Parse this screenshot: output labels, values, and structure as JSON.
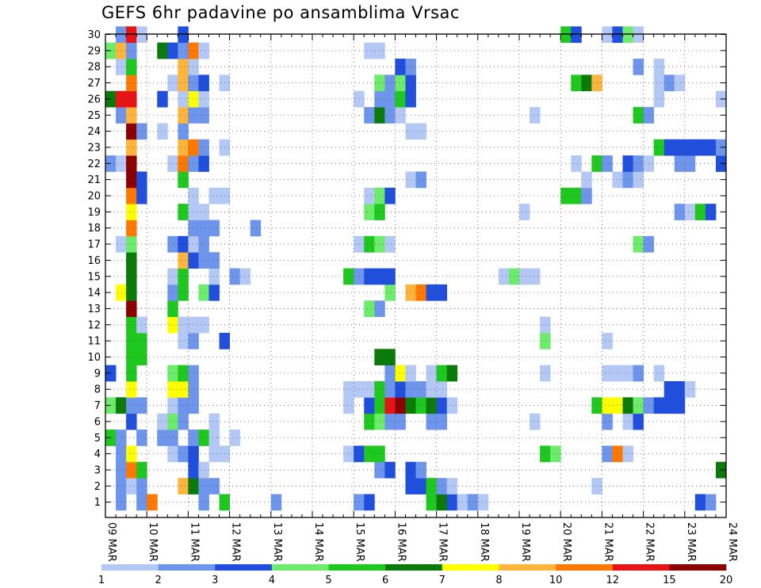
{
  "chart_data": {
    "type": "heatmap",
    "title": "GEFS 6hr padavine po ansamblima Vrsac",
    "xlabel": "",
    "ylabel": "",
    "y_categories": [
      "1",
      "2",
      "3",
      "4",
      "5",
      "6",
      "7",
      "8",
      "9",
      "10",
      "11",
      "12",
      "13",
      "14",
      "15",
      "16",
      "17",
      "18",
      "19",
      "20",
      "21",
      "22",
      "23",
      "24",
      "25",
      "26",
      "27",
      "28",
      "29",
      "30"
    ],
    "x_tick_labels": [
      "09 MAR",
      "10 MAR",
      "11 MAR",
      "12 MAR",
      "13 MAR",
      "14 MAR",
      "15 MAR",
      "16 MAR",
      "17 MAR",
      "18 MAR",
      "19 MAR",
      "20 MAR",
      "21 MAR",
      "22 MAR",
      "23 MAR",
      "24 MAR"
    ],
    "x_start": "2009-03-09 00Z",
    "time_step_hours": 6,
    "n_steps": 60,
    "grid": true,
    "colorbar": {
      "levels": [
        1,
        2,
        3,
        4,
        5,
        6,
        7,
        8,
        10,
        12,
        15,
        20
      ],
      "colors": [
        "#b4c8f5",
        "#6e95ec",
        "#1f4fdc",
        "#6cec6a",
        "#1ec81e",
        "#0a7a0a",
        "#ffff00",
        "#ffb43c",
        "#ff7800",
        "#e61414",
        "#8c0000"
      ]
    },
    "cells": [
      [
        1,
        1,
        2
      ],
      [
        1,
        3,
        2
      ],
      [
        1,
        4,
        9
      ],
      [
        1,
        9,
        2
      ],
      [
        1,
        11,
        5
      ],
      [
        1,
        16,
        2
      ],
      [
        1,
        24,
        2
      ],
      [
        1,
        25,
        3
      ],
      [
        1,
        31,
        5
      ],
      [
        1,
        32,
        6
      ],
      [
        1,
        33,
        3
      ],
      [
        1,
        34,
        1
      ],
      [
        1,
        35,
        2
      ],
      [
        1,
        36,
        1
      ],
      [
        1,
        57,
        3
      ],
      [
        1,
        58,
        2
      ],
      [
        2,
        1,
        2
      ],
      [
        2,
        2,
        1
      ],
      [
        2,
        3,
        2
      ],
      [
        2,
        7,
        8
      ],
      [
        2,
        8,
        6
      ],
      [
        2,
        9,
        2
      ],
      [
        2,
        10,
        2
      ],
      [
        2,
        29,
        3
      ],
      [
        2,
        30,
        3
      ],
      [
        2,
        31,
        5
      ],
      [
        2,
        32,
        2
      ],
      [
        2,
        33,
        1
      ],
      [
        2,
        47,
        1
      ],
      [
        3,
        1,
        2
      ],
      [
        3,
        2,
        9
      ],
      [
        3,
        3,
        5
      ],
      [
        3,
        8,
        3
      ],
      [
        3,
        9,
        1
      ],
      [
        3,
        26,
        2
      ],
      [
        3,
        27,
        3
      ],
      [
        3,
        29,
        3
      ],
      [
        3,
        30,
        2
      ],
      [
        3,
        59,
        6
      ],
      [
        4,
        1,
        2
      ],
      [
        4,
        2,
        7
      ],
      [
        4,
        6,
        1
      ],
      [
        4,
        7,
        2
      ],
      [
        4,
        8,
        3
      ],
      [
        4,
        10,
        1
      ],
      [
        4,
        11,
        1
      ],
      [
        4,
        23,
        1
      ],
      [
        4,
        24,
        3
      ],
      [
        4,
        25,
        5
      ],
      [
        4,
        26,
        5
      ],
      [
        4,
        42,
        5
      ],
      [
        4,
        43,
        4
      ],
      [
        4,
        48,
        2
      ],
      [
        4,
        49,
        9
      ],
      [
        4,
        50,
        1
      ],
      [
        5,
        0,
        5
      ],
      [
        5,
        1,
        2
      ],
      [
        5,
        3,
        2
      ],
      [
        5,
        5,
        2
      ],
      [
        5,
        6,
        2
      ],
      [
        5,
        8,
        2
      ],
      [
        5,
        9,
        5
      ],
      [
        5,
        10,
        1
      ],
      [
        5,
        12,
        1
      ],
      [
        6,
        2,
        3
      ],
      [
        6,
        5,
        1
      ],
      [
        6,
        6,
        4
      ],
      [
        6,
        7,
        2
      ],
      [
        6,
        10,
        1
      ],
      [
        6,
        25,
        5
      ],
      [
        6,
        26,
        4
      ],
      [
        6,
        27,
        2
      ],
      [
        6,
        28,
        2
      ],
      [
        6,
        31,
        2
      ],
      [
        6,
        32,
        2
      ],
      [
        6,
        41,
        1
      ],
      [
        6,
        48,
        2
      ],
      [
        6,
        50,
        1
      ],
      [
        6,
        51,
        3
      ],
      [
        7,
        0,
        4
      ],
      [
        7,
        1,
        6
      ],
      [
        7,
        2,
        2
      ],
      [
        7,
        3,
        2
      ],
      [
        7,
        6,
        1
      ],
      [
        7,
        7,
        2
      ],
      [
        7,
        8,
        2
      ],
      [
        7,
        23,
        1
      ],
      [
        7,
        25,
        3
      ],
      [
        7,
        26,
        5
      ],
      [
        7,
        27,
        10
      ],
      [
        7,
        28,
        11
      ],
      [
        7,
        29,
        6
      ],
      [
        7,
        30,
        5
      ],
      [
        7,
        31,
        6
      ],
      [
        7,
        32,
        3
      ],
      [
        7,
        33,
        1
      ],
      [
        7,
        47,
        5
      ],
      [
        7,
        48,
        7
      ],
      [
        7,
        49,
        7
      ],
      [
        7,
        50,
        6
      ],
      [
        7,
        51,
        4
      ],
      [
        7,
        52,
        2
      ],
      [
        7,
        53,
        3
      ],
      [
        7,
        54,
        3
      ],
      [
        7,
        55,
        3
      ],
      [
        8,
        2,
        7
      ],
      [
        8,
        6,
        7
      ],
      [
        8,
        7,
        7
      ],
      [
        8,
        8,
        2
      ],
      [
        8,
        23,
        1
      ],
      [
        8,
        24,
        1
      ],
      [
        8,
        25,
        1
      ],
      [
        8,
        26,
        5
      ],
      [
        8,
        27,
        2
      ],
      [
        8,
        28,
        3
      ],
      [
        8,
        29,
        2
      ],
      [
        8,
        30,
        2
      ],
      [
        8,
        31,
        1
      ],
      [
        8,
        32,
        1
      ],
      [
        8,
        54,
        3
      ],
      [
        8,
        55,
        3
      ],
      [
        8,
        56,
        1
      ],
      [
        9,
        0,
        3
      ],
      [
        9,
        2,
        5
      ],
      [
        9,
        6,
        4
      ],
      [
        9,
        7,
        5
      ],
      [
        9,
        8,
        2
      ],
      [
        9,
        27,
        2
      ],
      [
        9,
        28,
        7
      ],
      [
        9,
        29,
        1
      ],
      [
        9,
        31,
        1
      ],
      [
        9,
        32,
        5
      ],
      [
        9,
        33,
        6
      ],
      [
        9,
        42,
        1
      ],
      [
        9,
        48,
        1
      ],
      [
        9,
        49,
        1
      ],
      [
        9,
        50,
        1
      ],
      [
        9,
        51,
        2
      ],
      [
        9,
        53,
        1
      ],
      [
        10,
        2,
        5
      ],
      [
        10,
        3,
        5
      ],
      [
        10,
        26,
        6
      ],
      [
        10,
        27,
        6
      ],
      [
        11,
        2,
        5
      ],
      [
        11,
        3,
        5
      ],
      [
        11,
        7,
        1
      ],
      [
        11,
        8,
        2
      ],
      [
        11,
        11,
        3
      ],
      [
        11,
        42,
        4
      ],
      [
        11,
        48,
        1
      ],
      [
        12,
        2,
        5
      ],
      [
        12,
        3,
        1
      ],
      [
        12,
        6,
        7
      ],
      [
        12,
        7,
        1
      ],
      [
        12,
        8,
        1
      ],
      [
        12,
        9,
        1
      ],
      [
        12,
        42,
        1
      ],
      [
        13,
        2,
        11
      ],
      [
        13,
        6,
        5
      ],
      [
        13,
        25,
        4
      ],
      [
        13,
        26,
        2
      ],
      [
        14,
        1,
        7
      ],
      [
        14,
        2,
        6
      ],
      [
        14,
        6,
        2
      ],
      [
        14,
        7,
        5
      ],
      [
        14,
        9,
        4
      ],
      [
        14,
        10,
        3
      ],
      [
        14,
        27,
        4
      ],
      [
        14,
        29,
        8
      ],
      [
        14,
        30,
        9
      ],
      [
        14,
        31,
        3
      ],
      [
        14,
        32,
        3
      ],
      [
        15,
        2,
        6
      ],
      [
        15,
        6,
        1
      ],
      [
        15,
        7,
        5
      ],
      [
        15,
        10,
        1
      ],
      [
        15,
        12,
        2
      ],
      [
        15,
        13,
        1
      ],
      [
        15,
        23,
        5
      ],
      [
        15,
        24,
        2
      ],
      [
        15,
        25,
        3
      ],
      [
        15,
        26,
        3
      ],
      [
        15,
        27,
        3
      ],
      [
        15,
        38,
        1
      ],
      [
        15,
        39,
        4
      ],
      [
        15,
        40,
        1
      ],
      [
        15,
        41,
        1
      ],
      [
        16,
        2,
        6
      ],
      [
        16,
        7,
        8
      ],
      [
        16,
        8,
        3
      ],
      [
        16,
        9,
        2
      ],
      [
        16,
        10,
        2
      ],
      [
        17,
        1,
        1
      ],
      [
        17,
        2,
        4
      ],
      [
        17,
        6,
        2
      ],
      [
        17,
        7,
        3
      ],
      [
        17,
        8,
        1
      ],
      [
        17,
        9,
        2
      ],
      [
        17,
        24,
        1
      ],
      [
        17,
        25,
        5
      ],
      [
        17,
        26,
        4
      ],
      [
        17,
        27,
        1
      ],
      [
        17,
        51,
        4
      ],
      [
        17,
        52,
        2
      ],
      [
        18,
        2,
        9
      ],
      [
        18,
        8,
        2
      ],
      [
        18,
        9,
        2
      ],
      [
        18,
        10,
        2
      ],
      [
        18,
        14,
        2
      ],
      [
        19,
        2,
        7
      ],
      [
        19,
        7,
        5
      ],
      [
        19,
        8,
        1
      ],
      [
        19,
        9,
        1
      ],
      [
        19,
        25,
        4
      ],
      [
        19,
        26,
        5
      ],
      [
        19,
        40,
        1
      ],
      [
        19,
        55,
        2
      ],
      [
        19,
        56,
        1
      ],
      [
        19,
        57,
        5
      ],
      [
        19,
        58,
        3
      ],
      [
        20,
        2,
        9
      ],
      [
        20,
        3,
        3
      ],
      [
        20,
        8,
        1
      ],
      [
        20,
        10,
        1
      ],
      [
        20,
        11,
        1
      ],
      [
        20,
        25,
        1
      ],
      [
        20,
        26,
        4
      ],
      [
        20,
        27,
        3
      ],
      [
        20,
        44,
        5
      ],
      [
        20,
        45,
        5
      ],
      [
        20,
        46,
        2
      ],
      [
        21,
        2,
        11
      ],
      [
        21,
        3,
        3
      ],
      [
        21,
        7,
        5
      ],
      [
        21,
        29,
        1
      ],
      [
        21,
        30,
        2
      ],
      [
        21,
        46,
        1
      ],
      [
        21,
        49,
        1
      ],
      [
        21,
        50,
        2
      ],
      [
        21,
        51,
        1
      ],
      [
        22,
        0,
        2
      ],
      [
        22,
        1,
        1
      ],
      [
        22,
        2,
        11
      ],
      [
        22,
        6,
        1
      ],
      [
        22,
        7,
        9
      ],
      [
        22,
        8,
        2
      ],
      [
        22,
        9,
        3
      ],
      [
        22,
        45,
        1
      ],
      [
        22,
        47,
        5
      ],
      [
        22,
        48,
        2
      ],
      [
        22,
        50,
        3
      ],
      [
        22,
        51,
        2
      ],
      [
        22,
        52,
        1
      ],
      [
        22,
        55,
        2
      ],
      [
        22,
        56,
        2
      ],
      [
        22,
        59,
        3
      ],
      [
        23,
        2,
        8
      ],
      [
        23,
        7,
        8
      ],
      [
        23,
        8,
        9
      ],
      [
        23,
        9,
        2
      ],
      [
        23,
        11,
        1
      ],
      [
        23,
        53,
        5
      ],
      [
        23,
        54,
        3
      ],
      [
        23,
        55,
        3
      ],
      [
        23,
        56,
        3
      ],
      [
        23,
        57,
        3
      ],
      [
        23,
        58,
        3
      ],
      [
        23,
        59,
        2
      ],
      [
        24,
        2,
        11
      ],
      [
        24,
        3,
        2
      ],
      [
        24,
        5,
        1
      ],
      [
        24,
        7,
        2
      ],
      [
        24,
        29,
        1
      ],
      [
        24,
        30,
        1
      ],
      [
        25,
        1,
        2
      ],
      [
        25,
        2,
        8
      ],
      [
        25,
        7,
        8
      ],
      [
        25,
        8,
        2
      ],
      [
        25,
        9,
        2
      ],
      [
        25,
        25,
        2
      ],
      [
        25,
        26,
        6
      ],
      [
        25,
        27,
        2
      ],
      [
        25,
        28,
        1
      ],
      [
        25,
        41,
        1
      ],
      [
        25,
        51,
        5
      ],
      [
        25,
        52,
        2
      ],
      [
        26,
        0,
        6
      ],
      [
        26,
        1,
        10
      ],
      [
        26,
        2,
        10
      ],
      [
        26,
        5,
        3
      ],
      [
        26,
        7,
        1
      ],
      [
        26,
        8,
        7
      ],
      [
        26,
        9,
        1
      ],
      [
        26,
        24,
        1
      ],
      [
        26,
        26,
        2
      ],
      [
        26,
        27,
        2
      ],
      [
        26,
        28,
        5
      ],
      [
        26,
        29,
        3
      ],
      [
        26,
        53,
        1
      ],
      [
        26,
        59,
        1
      ],
      [
        27,
        2,
        9
      ],
      [
        27,
        6,
        1
      ],
      [
        27,
        7,
        8
      ],
      [
        27,
        8,
        2
      ],
      [
        27,
        9,
        3
      ],
      [
        27,
        11,
        1
      ],
      [
        27,
        26,
        4
      ],
      [
        27,
        27,
        2
      ],
      [
        27,
        28,
        4
      ],
      [
        27,
        29,
        3
      ],
      [
        27,
        45,
        5
      ],
      [
        27,
        46,
        6
      ],
      [
        27,
        47,
        8
      ],
      [
        27,
        53,
        1
      ],
      [
        27,
        54,
        2
      ],
      [
        27,
        55,
        1
      ],
      [
        28,
        1,
        1
      ],
      [
        28,
        2,
        5
      ],
      [
        28,
        7,
        8
      ],
      [
        28,
        8,
        1
      ],
      [
        28,
        28,
        3
      ],
      [
        28,
        29,
        2
      ],
      [
        28,
        51,
        2
      ],
      [
        28,
        53,
        1
      ],
      [
        29,
        0,
        4
      ],
      [
        29,
        1,
        8
      ],
      [
        29,
        2,
        2
      ],
      [
        29,
        5,
        6
      ],
      [
        29,
        6,
        3
      ],
      [
        29,
        7,
        2
      ],
      [
        29,
        8,
        9
      ],
      [
        29,
        9,
        1
      ],
      [
        29,
        25,
        1
      ],
      [
        29,
        26,
        1
      ],
      [
        30,
        1,
        2
      ],
      [
        30,
        2,
        10
      ],
      [
        30,
        3,
        1
      ],
      [
        30,
        7,
        3
      ],
      [
        30,
        44,
        5
      ],
      [
        30,
        45,
        3
      ],
      [
        30,
        48,
        1
      ],
      [
        30,
        49,
        3
      ],
      [
        30,
        50,
        4
      ],
      [
        30,
        51,
        1
      ]
    ]
  }
}
